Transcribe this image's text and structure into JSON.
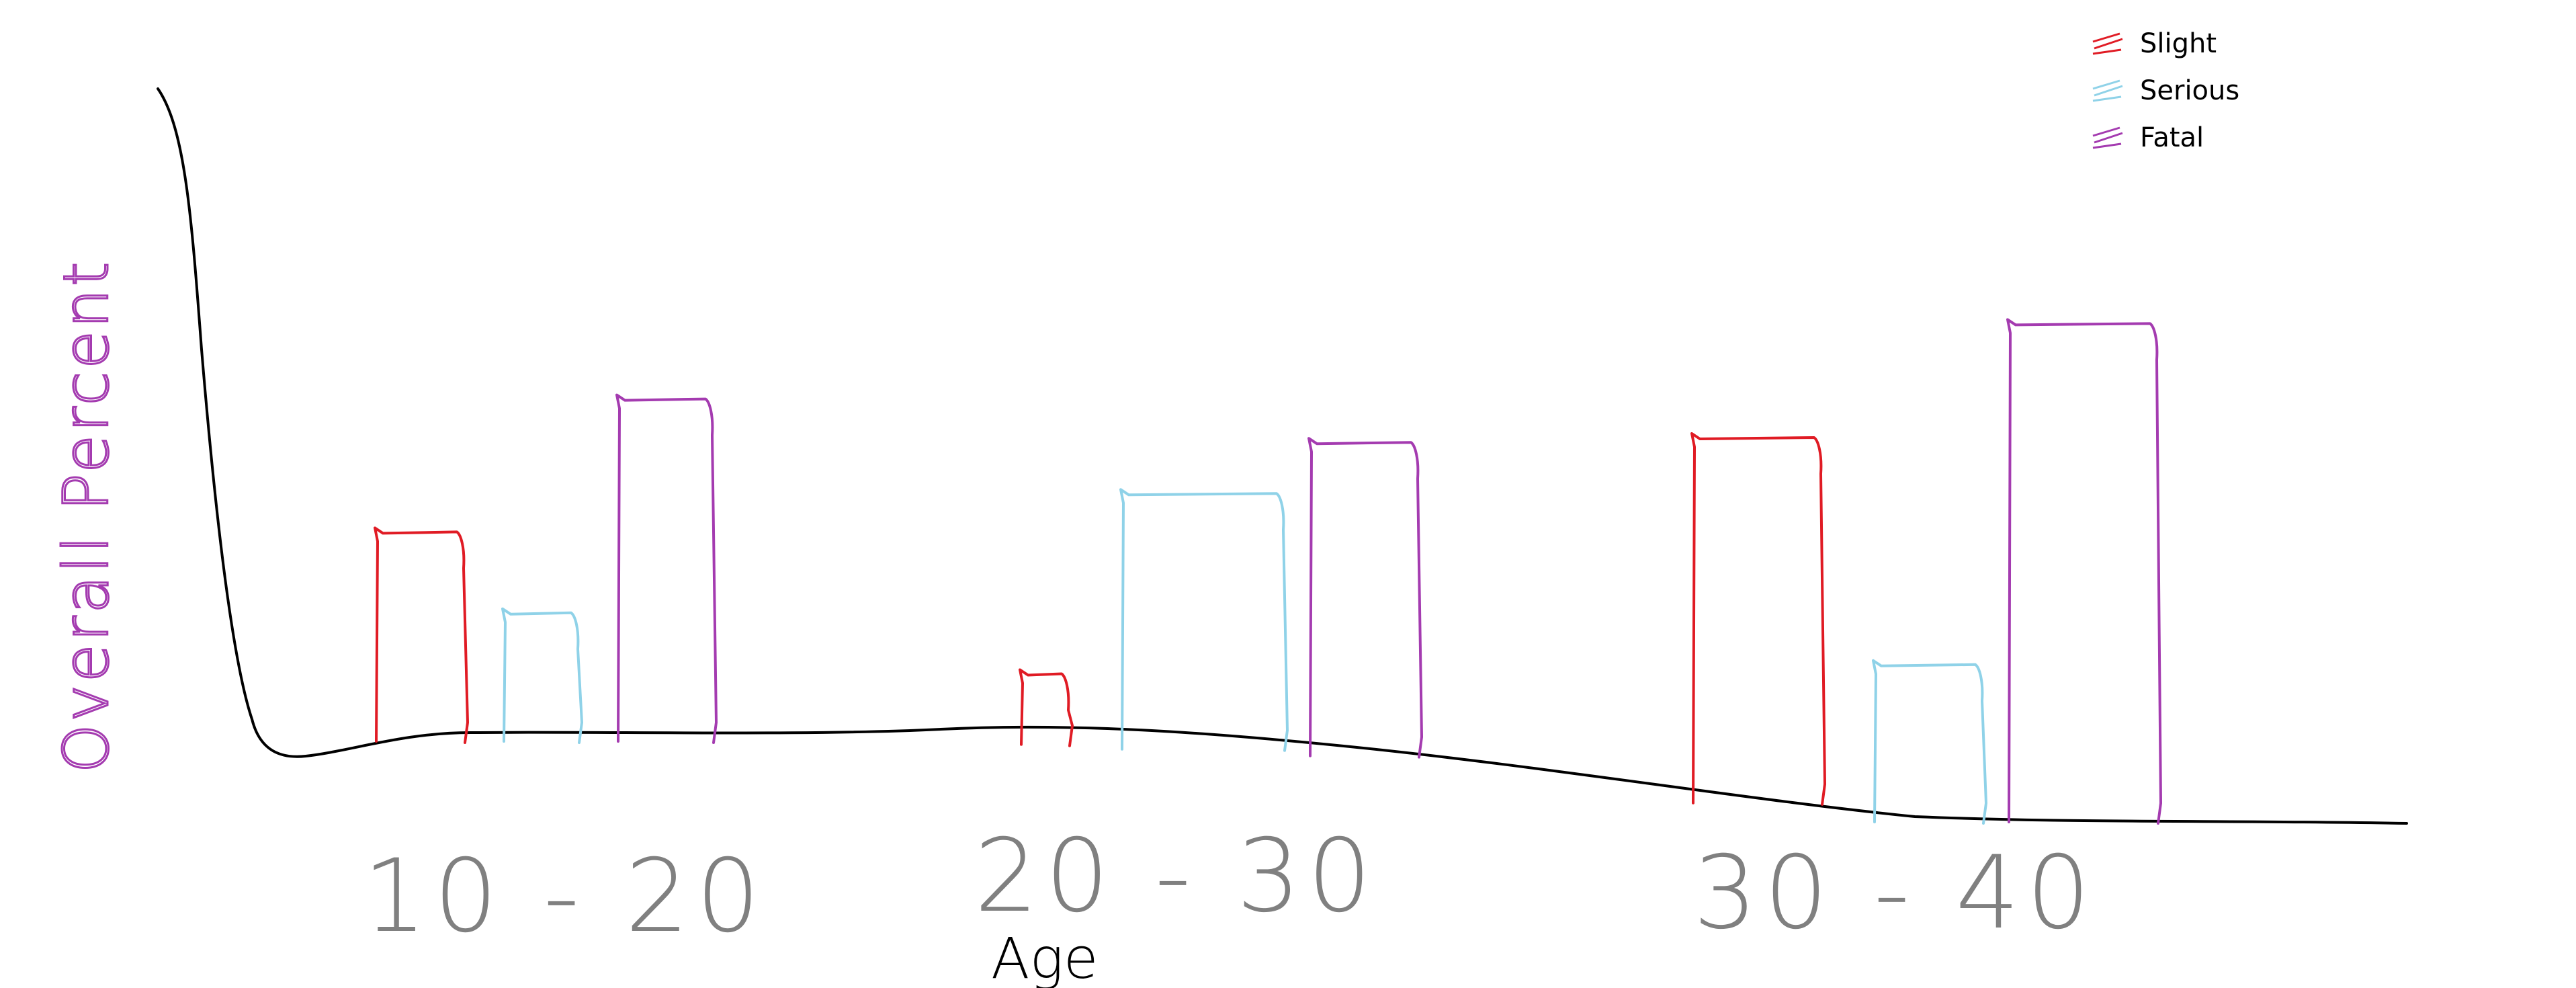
{
  "chart_data": {
    "type": "bar",
    "title": "",
    "xlabel": "Age",
    "ylabel": "Overall Percent",
    "categories": [
      "10-20",
      "20-30",
      "30-40"
    ],
    "ylim": [
      0,
      100
    ],
    "series": [
      {
        "name": "Slight",
        "color": "#e01b24",
        "values": [
          36,
          12,
          63
        ]
      },
      {
        "name": "Serious",
        "color": "#8fd2e8",
        "values": [
          22,
          44,
          27
        ]
      },
      {
        "name": "Fatal",
        "color": "#a43bb0",
        "values": [
          59,
          54,
          86
        ]
      }
    ],
    "legend_position": "top-right",
    "grid": false
  }
}
